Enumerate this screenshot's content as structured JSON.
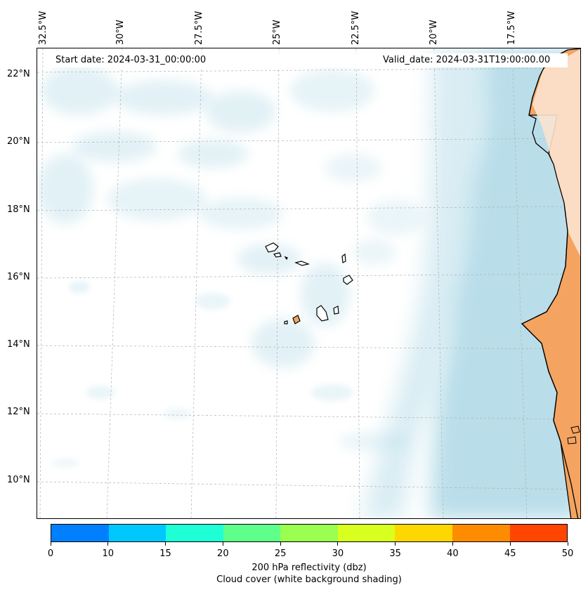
{
  "header": {
    "start_date": "Start date: 2024-03-31_00:00:00",
    "valid_date": "Valid_date: 2024-03-31T19:00:00.00"
  },
  "map": {
    "lat_labels": [
      "22°N",
      "20°N",
      "18°N",
      "16°N",
      "14°N",
      "12°N",
      "10°N"
    ],
    "lon_labels": [
      "32.5°W",
      "30°W",
      "27.5°W",
      "25°W",
      "22.5°W",
      "20°W",
      "17.5°W"
    ],
    "colors": {
      "cloud": "#add8e6",
      "land": "#f4a460",
      "coast": "#000000",
      "grid": "#b0b0b0"
    }
  },
  "colorbar": {
    "ticks": [
      "0",
      "10",
      "15",
      "20",
      "25",
      "30",
      "35",
      "40",
      "45",
      "50"
    ],
    "colors": [
      "#0080ff",
      "#00c8ff",
      "#1effd6",
      "#5eff8a",
      "#9aff50",
      "#d8ff1e",
      "#ffd700",
      "#ff8c00",
      "#ff4500"
    ],
    "label_line1": "200 hPa reflectivity (dbz)",
    "label_line2": "Cloud cover (white background shading)"
  }
}
